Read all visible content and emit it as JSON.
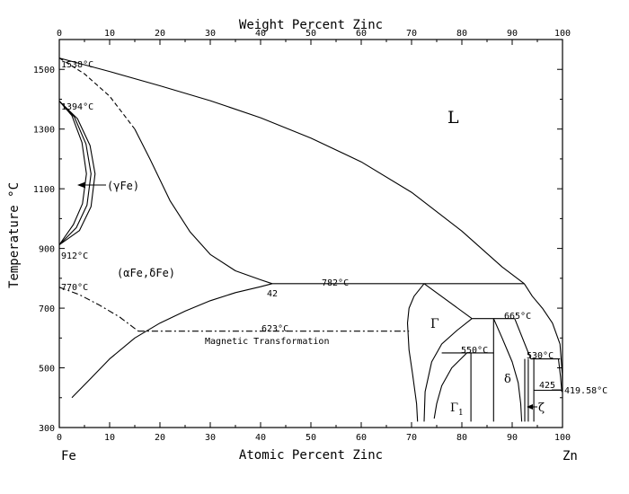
{
  "chart_data": {
    "type": "line",
    "title": "",
    "top_axis": {
      "label": "Weight Percent Zinc",
      "range": [
        0,
        100
      ],
      "tick_labels": [
        "0",
        "10",
        "20",
        "30",
        "40",
        "50",
        "60",
        "70",
        "80",
        "90",
        "100"
      ]
    },
    "x_axis": {
      "label": "Atomic Percent Zinc",
      "range": [
        0,
        100
      ],
      "tick_labels": [
        "0",
        "10",
        "20",
        "30",
        "40",
        "50",
        "60",
        "70",
        "80",
        "90",
        "100"
      ]
    },
    "y_axis": {
      "label": "Temperature °C",
      "range": [
        300,
        1600
      ],
      "tick_labels": [
        "300",
        "500",
        "700",
        "900",
        "1100",
        "1300",
        "1500"
      ]
    },
    "end_labels": {
      "left": "Fe",
      "right": "Zn"
    },
    "phase_labels": [
      {
        "id": "L",
        "text": "L"
      },
      {
        "id": "gamma_fe",
        "text": "(γFe)"
      },
      {
        "id": "alpha_fe",
        "text": "(αFe,δFe)"
      },
      {
        "id": "gamma",
        "text": "Γ"
      },
      {
        "id": "gamma1",
        "text": "Γ"
      },
      {
        "id": "gamma1_sub",
        "text": "1"
      },
      {
        "id": "delta",
        "text": "δ"
      },
      {
        "id": "zeta",
        "text": "ζ"
      }
    ],
    "annotations": [
      {
        "id": "t1538",
        "text": "1538°C",
        "x": 0,
        "y": 1538
      },
      {
        "id": "t1394",
        "text": "1394°C",
        "x": 0,
        "y": 1394
      },
      {
        "id": "t912",
        "text": "912°C",
        "x": 0,
        "y": 912
      },
      {
        "id": "t770",
        "text": "770°C",
        "x": 0,
        "y": 770
      },
      {
        "id": "t782",
        "text": "782°C",
        "x": 55,
        "y": 782
      },
      {
        "id": "n42",
        "text": "42",
        "x": 42.3,
        "y": 782
      },
      {
        "id": "t623",
        "text": "623°C",
        "x": 45,
        "y": 623
      },
      {
        "id": "magnetic",
        "text": "Magnetic Transformation",
        "x": 39,
        "y": 623
      },
      {
        "id": "t665",
        "text": "665°C",
        "x": 90,
        "y": 665
      },
      {
        "id": "t550",
        "text": "550°C",
        "x": 82,
        "y": 550
      },
      {
        "id": "t530",
        "text": "530°C",
        "x": 95,
        "y": 530
      },
      {
        "id": "n425",
        "text": "425",
        "x": 96,
        "y": 425
      },
      {
        "id": "t419",
        "text": "419.58°C",
        "x": 100,
        "y": 419.58
      }
    ],
    "series": [
      {
        "style": "solid",
        "points": [
          [
            0,
            1538
          ],
          [
            10,
            1493
          ],
          [
            20,
            1445
          ],
          [
            30,
            1395
          ],
          [
            40,
            1338
          ],
          [
            50,
            1270
          ],
          [
            60,
            1190
          ],
          [
            70,
            1088
          ],
          [
            80,
            958
          ],
          [
            88,
            838
          ],
          [
            92.4,
            782
          ]
        ]
      },
      {
        "style": "dashed",
        "points": [
          [
            0,
            1538
          ],
          [
            5,
            1485
          ],
          [
            10,
            1410
          ],
          [
            15,
            1300
          ]
        ]
      },
      {
        "style": "solid",
        "points": [
          [
            15,
            1300
          ],
          [
            18,
            1200
          ],
          [
            22,
            1060
          ],
          [
            26,
            955
          ],
          [
            30,
            880
          ],
          [
            35,
            825
          ],
          [
            40,
            795
          ],
          [
            42.3,
            782
          ]
        ]
      },
      {
        "style": "solid",
        "points": [
          [
            0,
            1394
          ],
          [
            2.5,
            1345
          ],
          [
            4.5,
            1255
          ],
          [
            5.4,
            1150
          ],
          [
            4.6,
            1050
          ],
          [
            2.8,
            980
          ],
          [
            0,
            912
          ]
        ]
      },
      {
        "style": "solid",
        "points": [
          [
            0,
            1394
          ],
          [
            3.0,
            1340
          ],
          [
            5.3,
            1250
          ],
          [
            6.3,
            1150
          ],
          [
            5.5,
            1045
          ],
          [
            3.4,
            970
          ],
          [
            0,
            912
          ]
        ]
      },
      {
        "style": "solid",
        "points": [
          [
            0,
            1394
          ],
          [
            3.6,
            1335
          ],
          [
            6.1,
            1245
          ],
          [
            7.1,
            1150
          ],
          [
            6.3,
            1040
          ],
          [
            4.0,
            960
          ],
          [
            0,
            912
          ]
        ]
      },
      {
        "style": "dashdot",
        "points": [
          [
            0,
            770
          ],
          [
            4,
            745
          ],
          [
            8,
            710
          ],
          [
            12,
            670
          ],
          [
            15.7,
            623
          ]
        ]
      },
      {
        "style": "dashdot",
        "points": [
          [
            15.7,
            623
          ],
          [
            69.5,
            623
          ]
        ]
      },
      {
        "style": "solid",
        "points": [
          [
            2.5,
            400
          ],
          [
            6,
            460
          ],
          [
            10,
            530
          ],
          [
            15,
            600
          ],
          [
            20,
            650
          ],
          [
            25,
            690
          ],
          [
            30,
            725
          ],
          [
            35,
            752
          ],
          [
            40,
            772
          ],
          [
            42.3,
            782
          ]
        ]
      },
      {
        "style": "solid",
        "points": [
          [
            42.3,
            782
          ],
          [
            92.4,
            782
          ]
        ]
      },
      {
        "style": "solid",
        "points": [
          [
            72.5,
            782
          ],
          [
            70.5,
            740
          ],
          [
            69.5,
            700
          ],
          [
            69.2,
            650
          ],
          [
            69.5,
            560
          ],
          [
            70.2,
            480
          ],
          [
            71,
            380
          ],
          [
            71.2,
            320
          ]
        ]
      },
      {
        "style": "solid",
        "points": [
          [
            72.5,
            782
          ],
          [
            82,
            665
          ]
        ]
      },
      {
        "style": "solid",
        "points": [
          [
            82,
            665
          ],
          [
            90.5,
            665
          ]
        ]
      },
      {
        "style": "solid",
        "points": [
          [
            92.4,
            782
          ],
          [
            94,
            740
          ],
          [
            96,
            700
          ],
          [
            98,
            650
          ],
          [
            99.5,
            580
          ],
          [
            99.95,
            480
          ],
          [
            100,
            419.58
          ]
        ]
      },
      {
        "style": "solid",
        "points": [
          [
            90.5,
            665
          ],
          [
            93.7,
            530
          ]
        ]
      },
      {
        "style": "solid",
        "points": [
          [
            93.7,
            530
          ],
          [
            99.5,
            530
          ]
        ]
      },
      {
        "style": "solid",
        "points": [
          [
            76,
            550
          ],
          [
            86.3,
            550
          ]
        ]
      },
      {
        "style": "solid",
        "points": [
          [
            86.3,
            665
          ],
          [
            86.3,
            320
          ]
        ]
      },
      {
        "style": "solid",
        "points": [
          [
            82,
            665
          ],
          [
            79,
            625
          ],
          [
            76,
            580
          ],
          [
            74,
            520
          ],
          [
            72.7,
            420
          ],
          [
            72.5,
            320
          ]
        ]
      },
      {
        "style": "solid",
        "points": [
          [
            81,
            550
          ],
          [
            78,
            500
          ],
          [
            76,
            440
          ],
          [
            75,
            380
          ],
          [
            74.5,
            330
          ]
        ]
      },
      {
        "style": "solid",
        "points": [
          [
            81.8,
            550
          ],
          [
            81.8,
            320
          ]
        ]
      },
      {
        "style": "solid",
        "points": [
          [
            86.3,
            665
          ],
          [
            88,
            600
          ],
          [
            90,
            520
          ],
          [
            91.2,
            450
          ],
          [
            91.7,
            380
          ],
          [
            91.9,
            320
          ]
        ]
      },
      {
        "style": "solid",
        "points": [
          [
            92.5,
            530
          ],
          [
            92.5,
            320
          ]
        ]
      },
      {
        "style": "solid",
        "points": [
          [
            93.2,
            530
          ],
          [
            93.2,
            320
          ]
        ]
      },
      {
        "style": "solid",
        "points": [
          [
            94.3,
            530
          ],
          [
            94.3,
            320
          ]
        ]
      },
      {
        "style": "solid",
        "points": [
          [
            94.3,
            425
          ],
          [
            100,
            425
          ]
        ]
      },
      {
        "style": "solid",
        "points": [
          [
            99.2,
            530
          ],
          [
            99.6,
            470
          ],
          [
            99.85,
            419.58
          ]
        ]
      }
    ]
  }
}
